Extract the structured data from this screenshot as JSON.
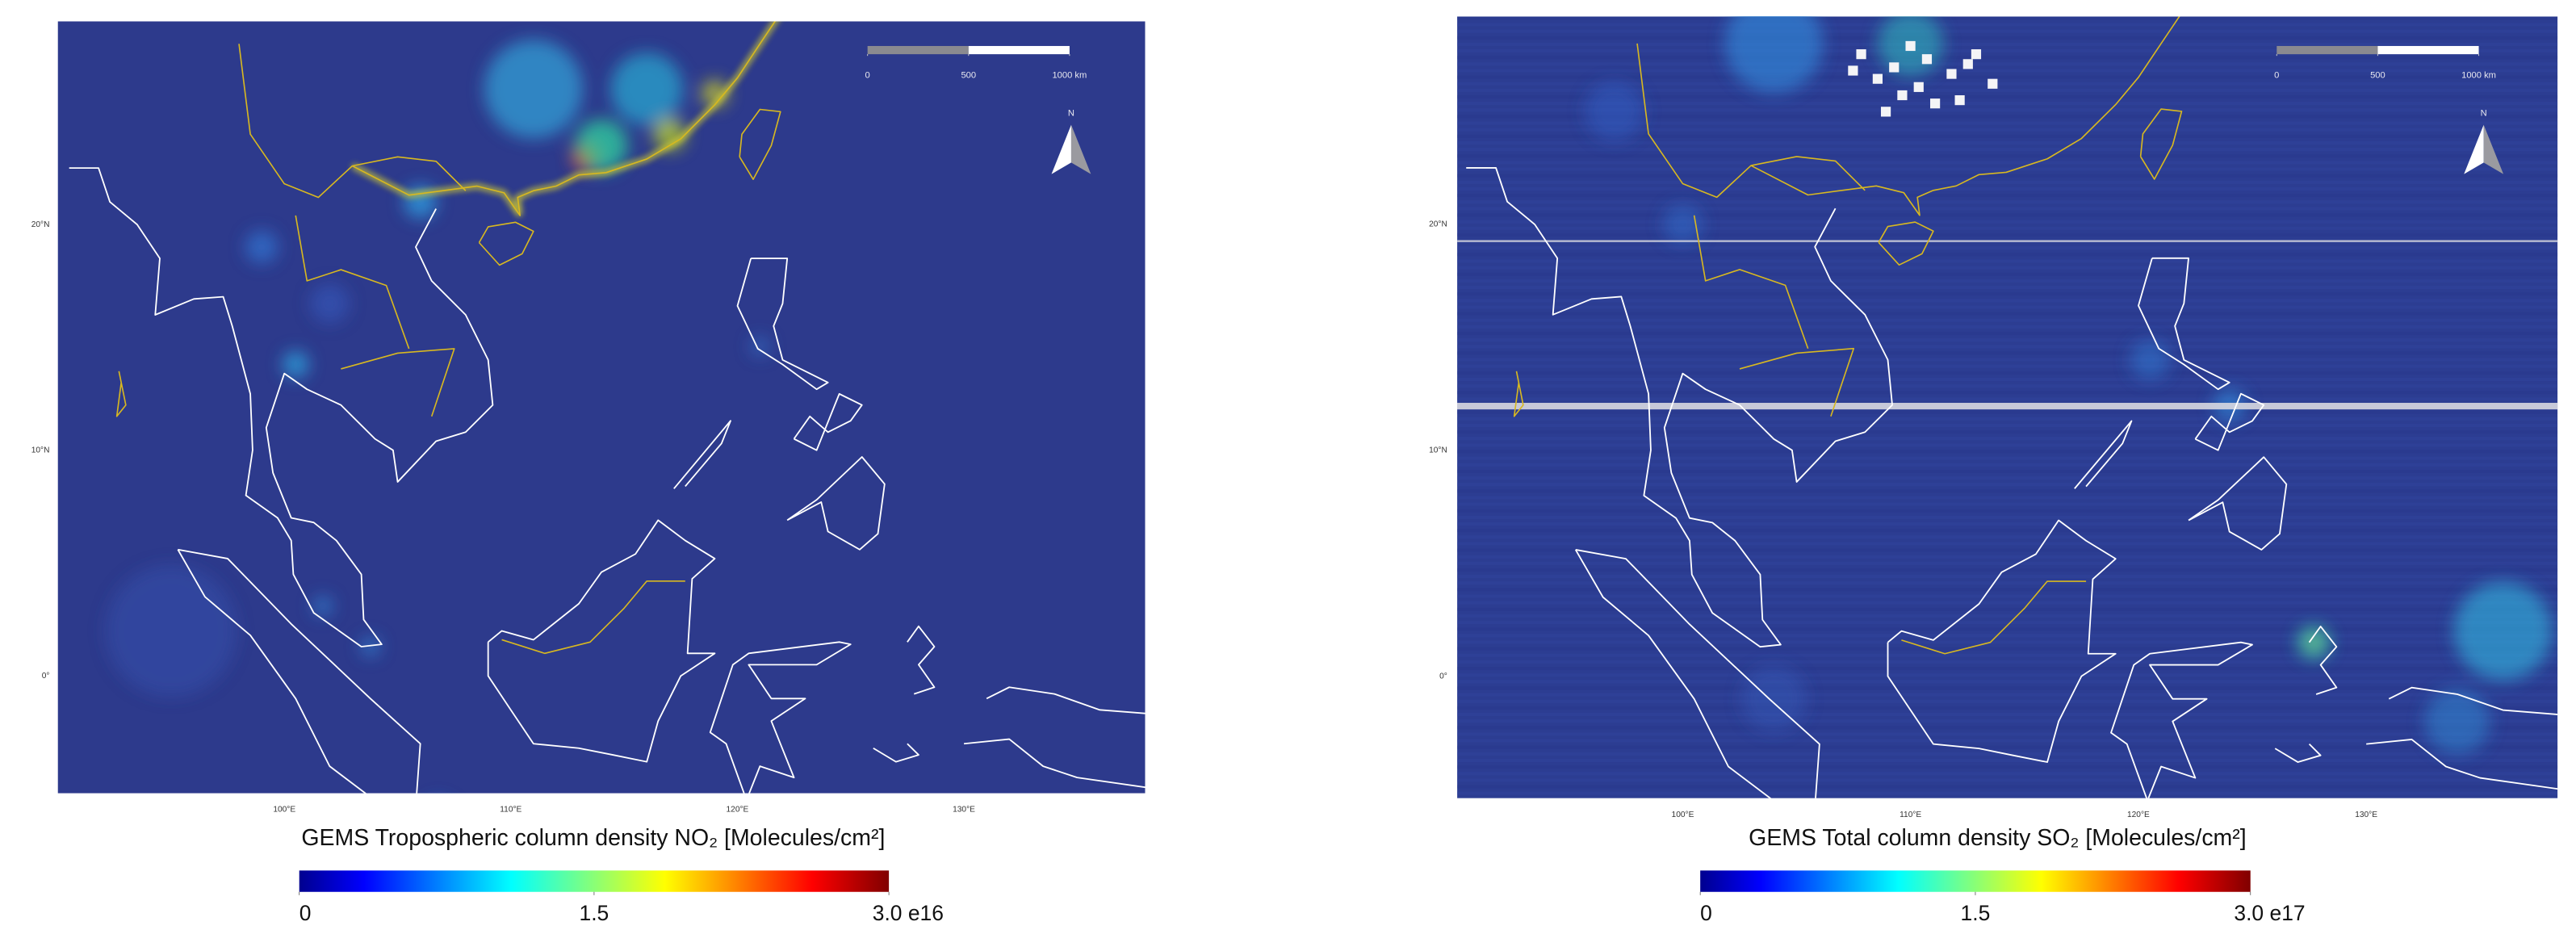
{
  "panels": [
    {
      "title": "GEMS Tropospheric column density NO₂ [Molecules/cm²]",
      "xlim": [
        90,
        138
      ],
      "ylim": [
        -5.2,
        29
      ],
      "xticks": [
        {
          "value": 100,
          "label": "100°E"
        },
        {
          "value": 110,
          "label": "110°E"
        },
        {
          "value": 120,
          "label": "120°E"
        },
        {
          "value": 130,
          "label": "130°E"
        }
      ],
      "yticks": [
        {
          "value": 0,
          "label": "0°"
        },
        {
          "value": 10,
          "label": "10°N"
        },
        {
          "value": 20,
          "label": "20°N"
        }
      ],
      "colorbar": {
        "lim": [
          0,
          3.0
        ],
        "ticks": [
          0,
          1.5,
          {
            "value": 3.0,
            "label": "3.0 e16"
          }
        ]
      },
      "scale_bar": {
        "lim": [
          0,
          1000
        ],
        "ticks": [
          0,
          500,
          {
            "value": 1000,
            "label": "1000 km"
          }
        ]
      },
      "north": "N"
    },
    {
      "title": "GEMS Total column density SO₂ [Molecules/cm²]",
      "xlim": [
        90.1,
        138.4
      ],
      "ylim": [
        -5.4,
        29.2
      ],
      "xticks": [
        {
          "value": 100,
          "label": "100°E"
        },
        {
          "value": 110,
          "label": "110°E"
        },
        {
          "value": 120,
          "label": "120°E"
        },
        {
          "value": 130,
          "label": "130°E"
        }
      ],
      "yticks": [
        {
          "value": 0,
          "label": "0°"
        },
        {
          "value": 10,
          "label": "10°N"
        },
        {
          "value": 20,
          "label": "20°N"
        }
      ],
      "colorbar": {
        "lim": [
          0,
          3.0
        ],
        "ticks": [
          0,
          1.5,
          {
            "value": 3.0,
            "label": "3.0 e17"
          }
        ]
      },
      "scale_bar": {
        "lim": [
          0,
          1000
        ],
        "ticks": [
          0,
          500,
          {
            "value": 1000,
            "label": "1000 km"
          }
        ]
      },
      "north": "N"
    }
  ]
}
